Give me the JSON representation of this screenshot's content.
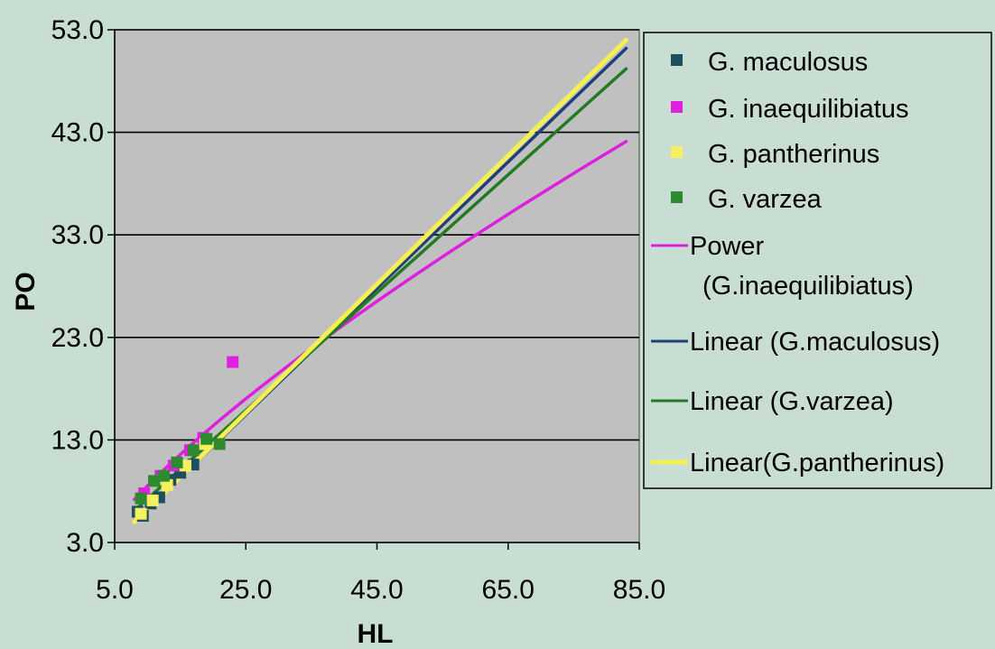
{
  "chart_data": {
    "type": "scatter",
    "xlabel": "HL",
    "ylabel": "PO",
    "xlim": [
      5.0,
      85.0
    ],
    "ylim": [
      3.0,
      53.0
    ],
    "x_ticks": [
      "5.0",
      "25.0",
      "45.0",
      "65.0",
      "85.0"
    ],
    "y_ticks": [
      "3.0",
      "13.0",
      "23.0",
      "33.0",
      "43.0",
      "53.0"
    ],
    "grid": "horizontal",
    "legend_position": "right",
    "plot_background": "#c0c0c0",
    "series": [
      {
        "name": "G. maculosus",
        "marker": "square",
        "color": "#1f4e5f",
        "points": [
          [
            8.5,
            6.0
          ],
          [
            9.3,
            5.6
          ],
          [
            10.5,
            6.8
          ],
          [
            11.8,
            7.4
          ],
          [
            13.5,
            9.1
          ],
          [
            15.0,
            9.8
          ],
          [
            17.0,
            10.6
          ]
        ]
      },
      {
        "name": "G. inaequilibiatus",
        "marker": "square",
        "color": "#e020e0",
        "points": [
          [
            9.5,
            7.8
          ],
          [
            12.0,
            9.5
          ],
          [
            14.0,
            10.5
          ],
          [
            16.5,
            12.0
          ],
          [
            18.5,
            13.2
          ],
          [
            23.0,
            20.6
          ]
        ]
      },
      {
        "name": "G. pantherinus",
        "marker": "square",
        "color": "#f4f060",
        "points": [
          [
            9.0,
            5.8
          ],
          [
            10.8,
            7.1
          ],
          [
            13.0,
            8.6
          ],
          [
            15.8,
            10.5
          ],
          [
            18.8,
            12.6
          ]
        ]
      },
      {
        "name": "G. varzea",
        "marker": "square",
        "color": "#2e8a2e",
        "points": [
          [
            9.0,
            7.3
          ],
          [
            11.0,
            9.0
          ],
          [
            12.5,
            9.5
          ],
          [
            14.5,
            10.8
          ],
          [
            17.0,
            12.0
          ],
          [
            19.0,
            13.1
          ],
          [
            21.0,
            12.6
          ]
        ]
      }
    ],
    "trendlines": [
      {
        "name": "Power (G.inaequilibiatus)",
        "type": "power",
        "color": "#dd20dd",
        "x_range": [
          8.0,
          83.0
        ],
        "y_range": [
          7.2,
          42.1
        ]
      },
      {
        "name": "Linear (G.maculosus)",
        "type": "linear",
        "color": "#1f3f7a",
        "x_range": [
          8.5,
          83.0
        ],
        "y_range": [
          5.3,
          51.2
        ]
      },
      {
        "name": "Linear (G.varzea)",
        "type": "linear",
        "color": "#237a23",
        "x_range": [
          8.5,
          83.0
        ],
        "y_range": [
          6.4,
          49.2
        ]
      },
      {
        "name": "Linear(G.pantherinus)",
        "type": "linear",
        "color": "#f5f052",
        "x_range": [
          8.0,
          83.0
        ],
        "y_range": [
          5.0,
          52.0
        ]
      }
    ],
    "legend": [
      {
        "kind": "marker",
        "series": 0,
        "lines": [
          "G. maculosus"
        ]
      },
      {
        "kind": "marker",
        "series": 1,
        "lines": [
          "G. inaequilibiatus"
        ]
      },
      {
        "kind": "marker",
        "series": 2,
        "lines": [
          "G. pantherinus"
        ]
      },
      {
        "kind": "marker",
        "series": 3,
        "lines": [
          "G. varzea"
        ]
      },
      {
        "kind": "line",
        "trend": 0,
        "lines": [
          "Power",
          "(G.inaequilibiatus)"
        ]
      },
      {
        "kind": "line",
        "trend": 1,
        "lines": [
          "Linear (G.maculosus)"
        ]
      },
      {
        "kind": "line",
        "trend": 2,
        "lines": [
          "Linear (G.varzea)"
        ]
      },
      {
        "kind": "line",
        "trend": 3,
        "lines": [
          "Linear(G.pantherinus)"
        ]
      }
    ]
  }
}
